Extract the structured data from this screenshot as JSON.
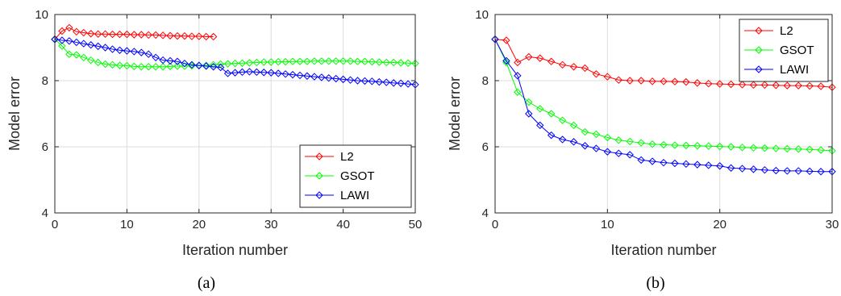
{
  "colors": {
    "L2": "#ff0000",
    "GSOT": "#00ff00",
    "LAWI": "#0000ff",
    "axis": "#262626",
    "grid": "#dcdcdc"
  },
  "chart_data": [
    {
      "type": "line",
      "caption": "(a)",
      "xlabel": "Iteration number",
      "ylabel": "Model error",
      "xlim": [
        0,
        50
      ],
      "ylim": [
        4,
        10
      ],
      "xticks": [
        0,
        10,
        20,
        30,
        40,
        50
      ],
      "yticks": [
        4,
        6,
        8,
        10
      ],
      "grid": true,
      "legend": "bottom-right",
      "marker": "diamond",
      "series": [
        {
          "name": "L2",
          "color_key": "L2",
          "x": [
            0,
            1,
            2,
            3,
            4,
            5,
            6,
            7,
            8,
            9,
            10,
            11,
            12,
            13,
            14,
            15,
            16,
            17,
            18,
            19,
            20,
            21,
            22
          ],
          "y": [
            9.25,
            9.5,
            9.6,
            9.48,
            9.45,
            9.42,
            9.41,
            9.41,
            9.4,
            9.4,
            9.4,
            9.39,
            9.39,
            9.38,
            9.38,
            9.37,
            9.36,
            9.35,
            9.35,
            9.34,
            9.34,
            9.33,
            9.33
          ]
        },
        {
          "name": "GSOT",
          "color_key": "GSOT",
          "x": [
            0,
            1,
            2,
            3,
            4,
            5,
            6,
            7,
            8,
            9,
            10,
            11,
            12,
            13,
            14,
            15,
            16,
            17,
            18,
            19,
            20,
            21,
            22,
            23,
            24,
            25,
            26,
            27,
            28,
            29,
            30,
            31,
            32,
            33,
            34,
            35,
            36,
            37,
            38,
            39,
            40,
            41,
            42,
            43,
            44,
            45,
            46,
            47,
            48,
            49,
            50
          ],
          "y": [
            9.25,
            9.05,
            8.8,
            8.78,
            8.7,
            8.62,
            8.55,
            8.5,
            8.48,
            8.46,
            8.45,
            8.43,
            8.42,
            8.42,
            8.42,
            8.42,
            8.43,
            8.44,
            8.44,
            8.45,
            8.45,
            8.46,
            8.48,
            8.5,
            8.51,
            8.52,
            8.53,
            8.54,
            8.55,
            8.56,
            8.56,
            8.57,
            8.57,
            8.58,
            8.58,
            8.58,
            8.59,
            8.59,
            8.59,
            8.59,
            8.59,
            8.59,
            8.58,
            8.58,
            8.57,
            8.56,
            8.55,
            8.55,
            8.54,
            8.53,
            8.52
          ]
        },
        {
          "name": "LAWI",
          "color_key": "LAWI",
          "x": [
            0,
            1,
            2,
            3,
            4,
            5,
            6,
            7,
            8,
            9,
            10,
            11,
            12,
            13,
            14,
            15,
            16,
            17,
            18,
            19,
            20,
            21,
            22,
            23,
            24,
            25,
            26,
            27,
            28,
            29,
            30,
            31,
            32,
            33,
            34,
            35,
            36,
            37,
            38,
            39,
            40,
            41,
            42,
            43,
            44,
            45,
            46,
            47,
            48,
            49,
            50
          ],
          "y": [
            9.25,
            9.22,
            9.2,
            9.16,
            9.12,
            9.08,
            9.04,
            9.0,
            8.95,
            8.92,
            8.9,
            8.88,
            8.85,
            8.8,
            8.7,
            8.62,
            8.6,
            8.58,
            8.52,
            8.48,
            8.46,
            8.44,
            8.42,
            8.4,
            8.22,
            8.24,
            8.26,
            8.27,
            8.26,
            8.25,
            8.24,
            8.22,
            8.2,
            8.18,
            8.16,
            8.14,
            8.12,
            8.1,
            8.08,
            8.06,
            8.04,
            8.02,
            8.0,
            7.99,
            7.98,
            7.96,
            7.95,
            7.93,
            7.92,
            7.9,
            7.88
          ]
        }
      ]
    },
    {
      "type": "line",
      "caption": "(b)",
      "xlabel": "Iteration number",
      "ylabel": "Model error",
      "xlim": [
        0,
        30
      ],
      "ylim": [
        4,
        10
      ],
      "xticks": [
        0,
        10,
        20,
        30
      ],
      "yticks": [
        4,
        6,
        8,
        10
      ],
      "grid": true,
      "legend": "top-right",
      "marker": "diamond",
      "series": [
        {
          "name": "L2",
          "color_key": "L2",
          "x": [
            0,
            1,
            2,
            3,
            4,
            5,
            6,
            7,
            8,
            9,
            10,
            11,
            12,
            13,
            14,
            15,
            16,
            17,
            18,
            19,
            20,
            21,
            22,
            23,
            24,
            25,
            26,
            27,
            28,
            29,
            30
          ],
          "y": [
            9.25,
            9.22,
            8.55,
            8.72,
            8.68,
            8.58,
            8.48,
            8.42,
            8.38,
            8.2,
            8.12,
            8.02,
            8.0,
            8.0,
            7.98,
            7.98,
            7.97,
            7.96,
            7.93,
            7.91,
            7.9,
            7.89,
            7.88,
            7.87,
            7.87,
            7.86,
            7.85,
            7.85,
            7.84,
            7.83,
            7.8
          ]
        },
        {
          "name": "GSOT",
          "color_key": "GSOT",
          "x": [
            0,
            1,
            2,
            3,
            4,
            5,
            6,
            7,
            8,
            9,
            10,
            11,
            12,
            13,
            14,
            15,
            16,
            17,
            18,
            19,
            20,
            21,
            22,
            23,
            24,
            25,
            26,
            27,
            28,
            29,
            30
          ],
          "y": [
            9.25,
            8.55,
            7.65,
            7.35,
            7.15,
            7.0,
            6.8,
            6.65,
            6.45,
            6.38,
            6.28,
            6.2,
            6.16,
            6.12,
            6.08,
            6.06,
            6.05,
            6.04,
            6.03,
            6.02,
            6.01,
            6.0,
            5.98,
            5.97,
            5.96,
            5.95,
            5.94,
            5.93,
            5.92,
            5.9,
            5.88
          ]
        },
        {
          "name": "LAWI",
          "color_key": "LAWI",
          "x": [
            0,
            1,
            2,
            3,
            4,
            5,
            6,
            7,
            8,
            9,
            10,
            11,
            12,
            13,
            14,
            15,
            16,
            17,
            18,
            19,
            20,
            21,
            22,
            23,
            24,
            25,
            26,
            27,
            28,
            29,
            30
          ],
          "y": [
            9.25,
            8.6,
            8.15,
            7.0,
            6.65,
            6.35,
            6.22,
            6.15,
            6.03,
            5.95,
            5.85,
            5.8,
            5.76,
            5.6,
            5.56,
            5.52,
            5.5,
            5.48,
            5.46,
            5.44,
            5.42,
            5.36,
            5.34,
            5.32,
            5.3,
            5.28,
            5.27,
            5.27,
            5.26,
            5.25,
            5.25
          ]
        }
      ]
    }
  ]
}
